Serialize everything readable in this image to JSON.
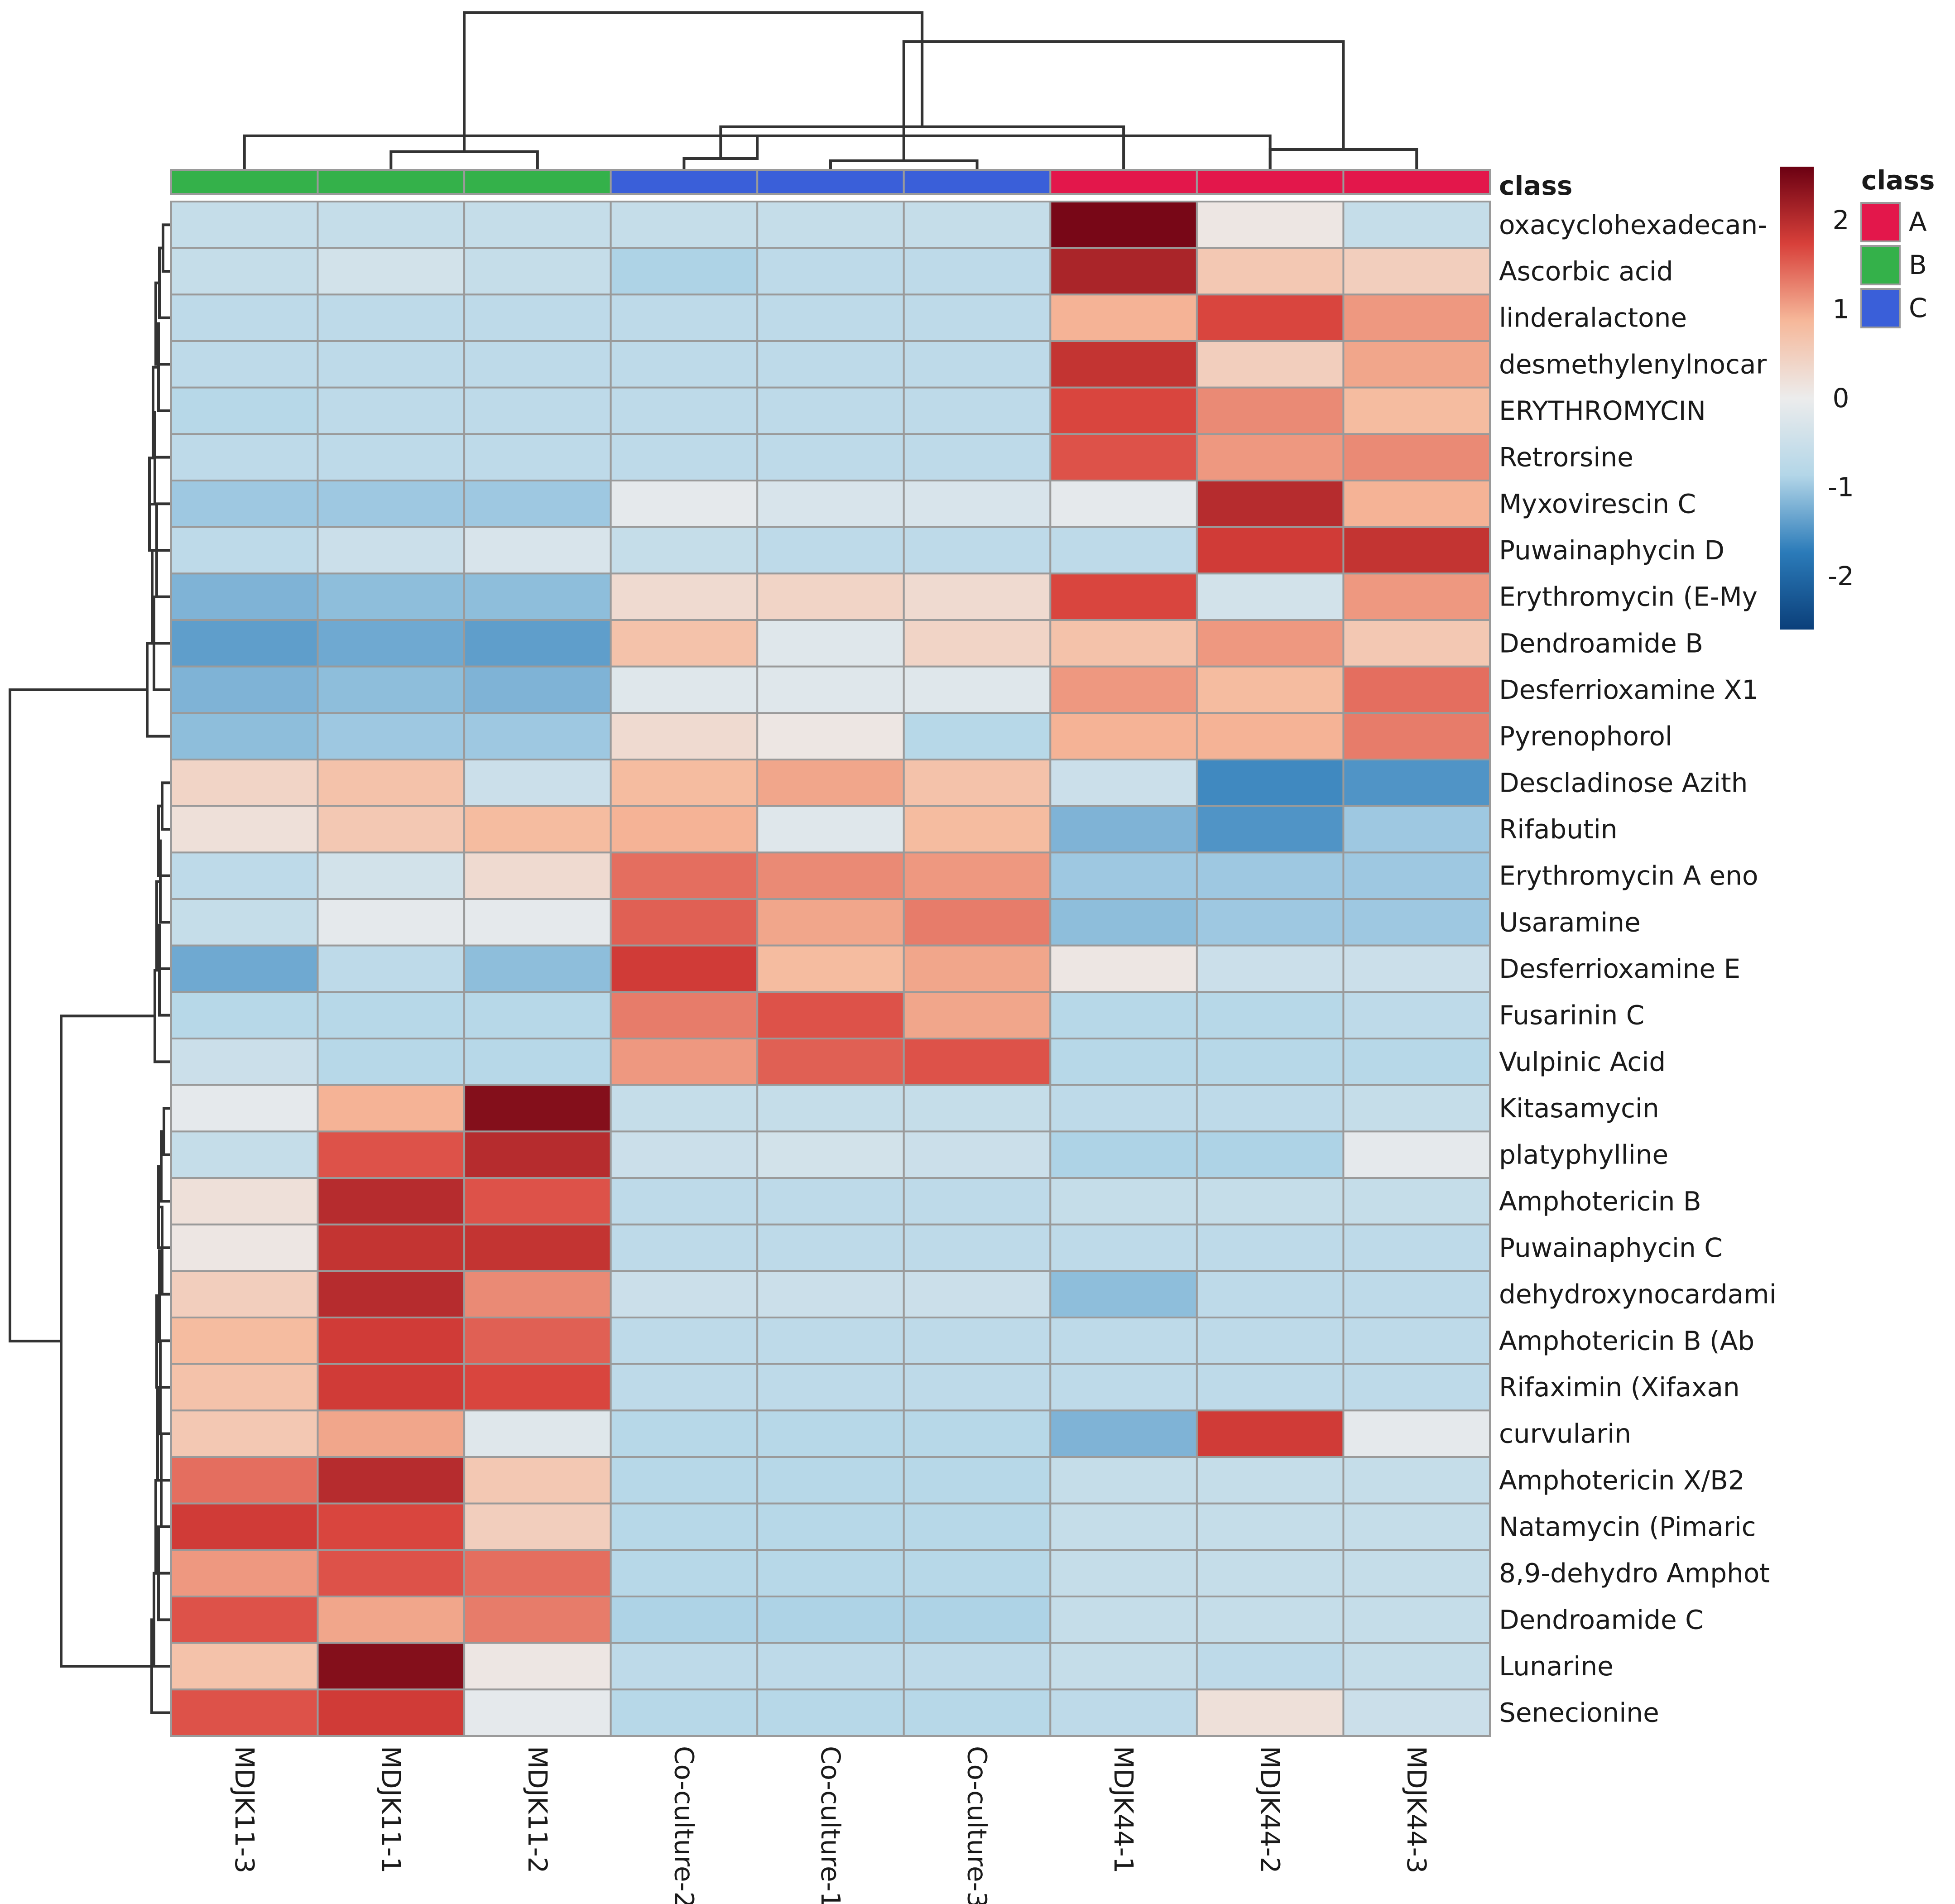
{
  "chart_data": {
    "type": "heatmap",
    "title": "",
    "columns": [
      "MDJK11-3",
      "MDJK11-1",
      "MDJK11-2",
      "Co-culture-2",
      "Co-culture-1",
      "Co-culture-3",
      "MDJK44-1",
      "MDJK44-2",
      "MDJK44-3"
    ],
    "column_classes": [
      "B",
      "B",
      "B",
      "C",
      "C",
      "C",
      "A",
      "A",
      "A"
    ],
    "annotation_label": "class",
    "rows": [
      "oxacyclohexadecan-",
      "Ascorbic acid",
      "linderalactone",
      "desmethylenylnocar",
      "ERYTHROMYCIN",
      "Retrorsine",
      "Myxovirescin C",
      "Puwainaphycin D",
      "Erythromycin (E-My",
      "Dendroamide B",
      "Desferrioxamine X1",
      "Pyrenophorol",
      "Descladinose Azith",
      "Rifabutin",
      "Erythromycin A eno",
      "Usaramine",
      "Desferrioxamine E",
      "Fusarinin C",
      "Vulpinic Acid",
      "Kitasamycin",
      "platyphylline",
      "Amphotericin B",
      "Puwainaphycin C",
      "dehydroxynocardami",
      "Amphotericin B (Ab",
      "Rifaximin (Xifaxan",
      "curvularin",
      "Amphotericin X/B2",
      "Natamycin (Pimaric",
      "8,9-dehydro Amphot",
      "Dendroamide C",
      "Lunarine",
      "Senecionine"
    ],
    "values": [
      [
        -0.6,
        -0.6,
        -0.6,
        -0.6,
        -0.6,
        -0.6,
        2.5,
        0.1,
        -0.6
      ],
      [
        -0.6,
        -0.4,
        -0.6,
        -0.9,
        -0.7,
        -0.7,
        2.1,
        0.6,
        0.5
      ],
      [
        -0.7,
        -0.7,
        -0.7,
        -0.7,
        -0.7,
        -0.7,
        0.9,
        1.7,
        1.1
      ],
      [
        -0.7,
        -0.7,
        -0.7,
        -0.7,
        -0.7,
        -0.7,
        1.9,
        0.5,
        1.0
      ],
      [
        -0.8,
        -0.7,
        -0.7,
        -0.7,
        -0.7,
        -0.7,
        1.7,
        1.2,
        0.8
      ],
      [
        -0.7,
        -0.7,
        -0.7,
        -0.7,
        -0.7,
        -0.7,
        1.6,
        1.1,
        1.2
      ],
      [
        -1.0,
        -1.0,
        -1.0,
        -0.1,
        -0.3,
        -0.3,
        -0.1,
        2.0,
        0.9
      ],
      [
        -0.7,
        -0.5,
        -0.3,
        -0.6,
        -0.7,
        -0.7,
        -0.7,
        1.8,
        1.9
      ],
      [
        -1.2,
        -1.1,
        -1.1,
        0.3,
        0.4,
        0.3,
        1.7,
        -0.4,
        1.1
      ],
      [
        -1.4,
        -1.3,
        -1.4,
        0.7,
        -0.2,
        0.4,
        0.7,
        1.1,
        0.6
      ],
      [
        -1.2,
        -1.1,
        -1.2,
        -0.2,
        -0.2,
        -0.2,
        1.1,
        0.8,
        1.4
      ],
      [
        -1.1,
        -1.0,
        -1.0,
        0.3,
        0.1,
        -0.8,
        0.9,
        0.9,
        1.3
      ],
      [
        0.4,
        0.7,
        -0.5,
        0.8,
        1.0,
        0.7,
        -0.5,
        -1.6,
        -1.5
      ],
      [
        0.2,
        0.6,
        0.8,
        0.9,
        -0.2,
        0.8,
        -1.2,
        -1.5,
        -1.0
      ],
      [
        -0.7,
        -0.4,
        0.3,
        1.4,
        1.2,
        1.1,
        -1.0,
        -1.0,
        -1.0
      ],
      [
        -0.6,
        -0.1,
        -0.1,
        1.5,
        1.0,
        1.3,
        -1.1,
        -1.0,
        -1.0
      ],
      [
        -1.3,
        -0.7,
        -1.1,
        1.8,
        0.8,
        1.0,
        0.1,
        -0.5,
        -0.5
      ],
      [
        -0.8,
        -0.8,
        -0.8,
        1.3,
        1.6,
        1.0,
        -0.8,
        -0.8,
        -0.7
      ],
      [
        -0.5,
        -0.8,
        -0.8,
        1.1,
        1.5,
        1.6,
        -0.8,
        -0.8,
        -0.8
      ],
      [
        -0.1,
        0.9,
        2.4,
        -0.6,
        -0.6,
        -0.6,
        -0.7,
        -0.7,
        -0.6
      ],
      [
        -0.6,
        1.6,
        2.0,
        -0.5,
        -0.4,
        -0.5,
        -0.9,
        -0.9,
        -0.1
      ],
      [
        0.2,
        2.0,
        1.6,
        -0.7,
        -0.7,
        -0.7,
        -0.6,
        -0.6,
        -0.6
      ],
      [
        0.1,
        1.9,
        1.9,
        -0.7,
        -0.7,
        -0.7,
        -0.7,
        -0.7,
        -0.7
      ],
      [
        0.5,
        2.0,
        1.2,
        -0.5,
        -0.5,
        -0.5,
        -1.1,
        -0.7,
        -0.7
      ],
      [
        0.8,
        1.8,
        1.5,
        -0.7,
        -0.7,
        -0.7,
        -0.7,
        -0.7,
        -0.7
      ],
      [
        0.7,
        1.8,
        1.7,
        -0.7,
        -0.7,
        -0.7,
        -0.7,
        -0.7,
        -0.7
      ],
      [
        0.6,
        1.0,
        -0.2,
        -0.8,
        -0.8,
        -0.8,
        -1.2,
        1.8,
        -0.1
      ],
      [
        1.4,
        2.0,
        0.6,
        -0.8,
        -0.8,
        -0.8,
        -0.6,
        -0.6,
        -0.6
      ],
      [
        1.8,
        1.7,
        0.5,
        -0.8,
        -0.8,
        -0.8,
        -0.6,
        -0.6,
        -0.6
      ],
      [
        1.1,
        1.6,
        1.4,
        -0.8,
        -0.8,
        -0.8,
        -0.6,
        -0.6,
        -0.6
      ],
      [
        1.6,
        1.0,
        1.3,
        -0.9,
        -0.9,
        -0.9,
        -0.6,
        -0.6,
        -0.6
      ],
      [
        0.7,
        2.4,
        0.1,
        -0.7,
        -0.7,
        -0.7,
        -0.6,
        -0.7,
        -0.6
      ],
      [
        1.6,
        1.8,
        -0.1,
        -0.8,
        -0.8,
        -0.8,
        -0.7,
        0.2,
        -0.5
      ]
    ],
    "color_scale": {
      "range": [
        -2.6,
        2.6
      ],
      "ticks": [
        -2,
        -1,
        0,
        1,
        2
      ],
      "stops": [
        "#0b3f7a",
        "#2b7bb9",
        "#b3d6e8",
        "#ececec",
        "#f6b89a",
        "#d8403a",
        "#6b0012"
      ]
    },
    "class_legend": {
      "title": "class",
      "entries": [
        {
          "label": "A",
          "color": "#e3174b"
        },
        {
          "label": "B",
          "color": "#34b14a"
        },
        {
          "label": "C",
          "color": "#3a5fd9"
        }
      ]
    },
    "column_dendrogram": {
      "description": "top clustering tree",
      "order": [
        "MDJK11-3",
        "MDJK11-1",
        "MDJK11-2",
        "Co-culture-2",
        "Co-culture-1",
        "Co-culture-3",
        "MDJK44-1",
        "MDJK44-2",
        "MDJK44-3"
      ]
    },
    "row_dendrogram": {
      "description": "left clustering tree"
    }
  }
}
